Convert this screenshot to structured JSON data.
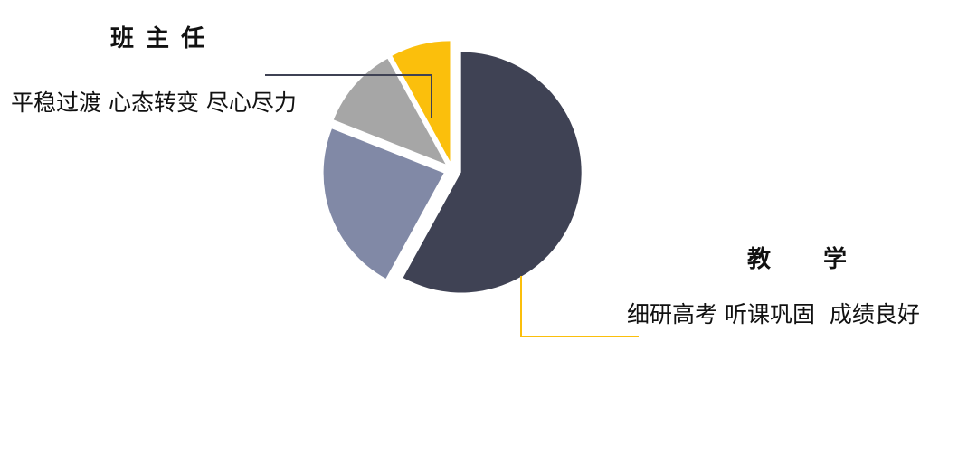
{
  "headings": {
    "left_title": "班 主 任",
    "left_sub": "平稳过渡 心态转变 尽心尽力",
    "right_title": "教　　学",
    "right_sub": "细研高考 听课巩固  成绩良好"
  },
  "chart_data": {
    "type": "pie",
    "start": "top",
    "direction": "clockwise",
    "values": [
      58,
      23,
      11,
      8
    ],
    "colors": [
      "#3f4254",
      "#8189a6",
      "#a6a6a6",
      "#fbbf0c"
    ],
    "exploded": true,
    "legend": "none"
  },
  "callouts": {
    "left_line_color": "#3f4254",
    "right_line_color": "#fbbf0c"
  }
}
